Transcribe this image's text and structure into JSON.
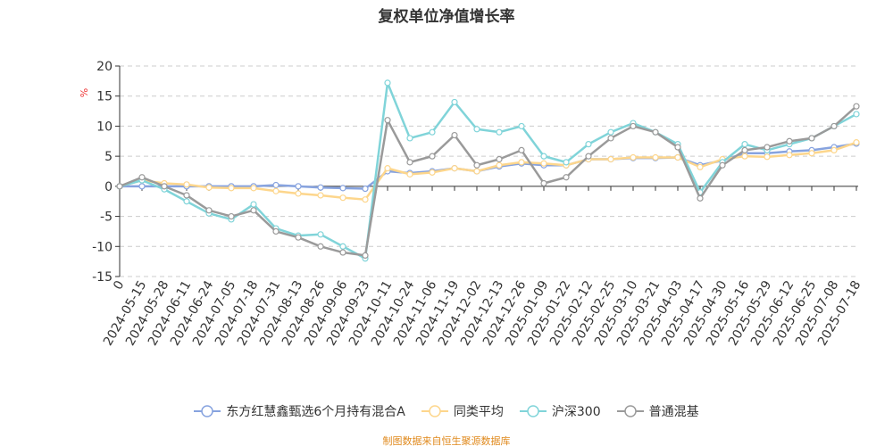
{
  "chart_data": {
    "type": "line",
    "title": "复权单位净值增长率",
    "ylabel": "%",
    "ylim": [
      -15,
      20
    ],
    "yticks": [
      -15,
      -10,
      -5,
      0,
      5,
      10,
      15,
      20
    ],
    "grid": true,
    "legend_position": "bottom",
    "categories": [
      "0",
      "2024-05-15",
      "2024-05-28",
      "2024-06-11",
      "2024-06-24",
      "2024-07-05",
      "2024-07-18",
      "2024-07-31",
      "2024-08-13",
      "2024-08-26",
      "2024-09-06",
      "2024-09-23",
      "2024-10-11",
      "2024-10-24",
      "2024-11-06",
      "2024-11-19",
      "2024-12-02",
      "2024-12-13",
      "2024-12-26",
      "2025-01-09",
      "2025-01-22",
      "2025-02-12",
      "2025-02-25",
      "2025-03-10",
      "2025-03-21",
      "2025-04-03",
      "2025-04-17",
      "2025-04-30",
      "2025-05-16",
      "2025-05-29",
      "2025-06-12",
      "2025-06-25",
      "2025-07-08",
      "2025-07-18"
    ],
    "series": [
      {
        "name": "东方红慧鑫甄选6个月持有混合A",
        "color": "#87a3df",
        "values": [
          0,
          0,
          0,
          0,
          0,
          0,
          0,
          0.2,
          0,
          -0.2,
          -0.3,
          -0.4,
          2.5,
          2.2,
          2.5,
          3,
          2.5,
          3.3,
          3.8,
          3.5,
          3.5,
          4.5,
          4.5,
          4.7,
          4.7,
          4.8,
          3.5,
          4.3,
          5.5,
          5.5,
          5.8,
          6,
          6.5,
          7.1
        ]
      },
      {
        "name": "同类平均",
        "color": "#fdd68c",
        "values": [
          0,
          1,
          0.5,
          0.3,
          -0.2,
          -0.3,
          -0.3,
          -0.8,
          -1.2,
          -1.5,
          -1.9,
          -2.2,
          3,
          2,
          2.3,
          3,
          2.5,
          3.5,
          4,
          3.8,
          3.5,
          4.5,
          4.5,
          4.8,
          4.8,
          4.8,
          3.2,
          4.5,
          5,
          4.9,
          5.2,
          5.5,
          6,
          7.3
        ]
      },
      {
        "name": "沪深300",
        "color": "#80d4d9",
        "values": [
          0,
          1,
          -0.5,
          -2.5,
          -4.5,
          -5.5,
          -3,
          -7,
          -8.2,
          -8,
          -10,
          -12,
          17.2,
          8,
          9,
          14,
          9.5,
          9,
          10,
          5,
          4,
          7,
          9,
          10.5,
          9,
          7,
          -1,
          4,
          7,
          6,
          7,
          8,
          10,
          12
        ]
      },
      {
        "name": "普通混基",
        "color": "#9a9a9a",
        "values": [
          0,
          1.5,
          0,
          -1.5,
          -4,
          -5,
          -4,
          -7.5,
          -8.5,
          -10,
          -11,
          -11.5,
          11,
          4,
          5,
          8.5,
          3.5,
          4.5,
          6,
          0.5,
          1.5,
          5,
          8,
          10,
          9,
          6.5,
          -2,
          3.5,
          6,
          6.5,
          7.5,
          8,
          10,
          13.3
        ]
      }
    ]
  },
  "source": "制图数据来自恒生聚源数据库"
}
